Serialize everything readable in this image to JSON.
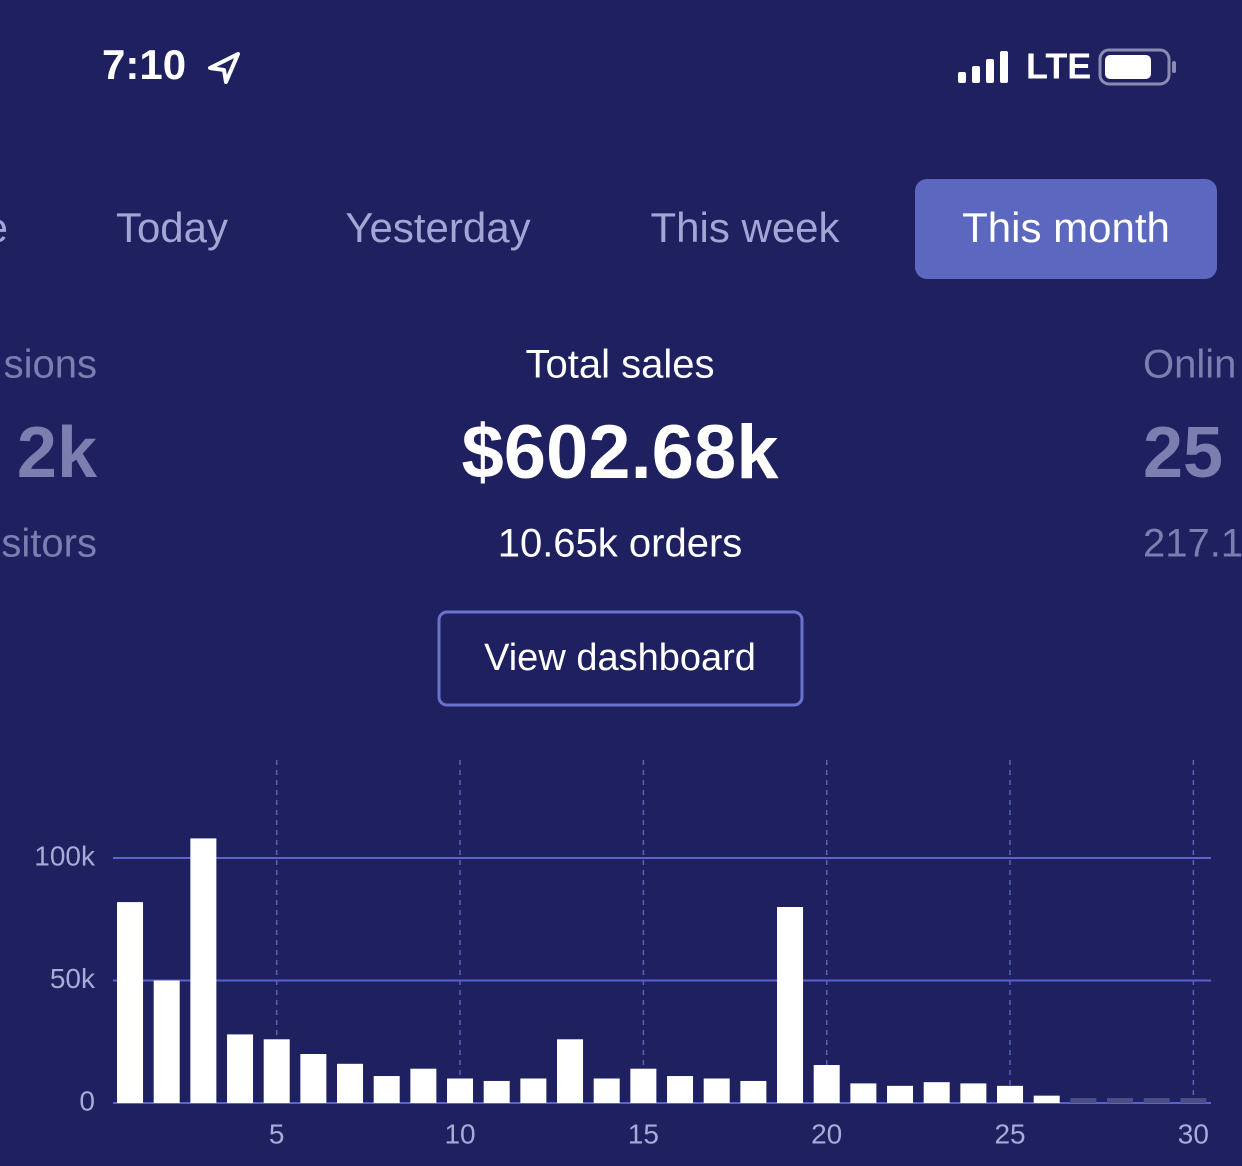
{
  "status_bar": {
    "time": "7:10",
    "network": "LTE"
  },
  "tabs": [
    {
      "label": "e",
      "active": false
    },
    {
      "label": "Today",
      "active": false
    },
    {
      "label": "Yesterday",
      "active": false
    },
    {
      "label": "This week",
      "active": false
    },
    {
      "label": "This month",
      "active": true
    }
  ],
  "metrics": [
    {
      "title": "sions",
      "value": "2k",
      "subtitle": "sitors"
    },
    {
      "title": "Total sales",
      "value": "$602.68k",
      "subtitle": "10.65k orders"
    },
    {
      "title": "Onlin",
      "value": "25",
      "subtitle": "217.1"
    }
  ],
  "button": "View dashboard",
  "chart_data": {
    "type": "bar",
    "x": [
      1,
      2,
      3,
      4,
      5,
      6,
      7,
      8,
      9,
      10,
      11,
      12,
      13,
      14,
      15,
      16,
      17,
      18,
      19,
      20,
      21,
      22,
      23,
      24,
      25,
      26,
      27,
      28,
      29,
      30
    ],
    "values": [
      82000,
      50000,
      108000,
      28000,
      26000,
      20000,
      16000,
      11000,
      14000,
      10000,
      9000,
      10000,
      26000,
      10000,
      14000,
      11000,
      10000,
      9000,
      80000,
      15500,
      8000,
      7000,
      8500,
      8000,
      7000,
      3000,
      0,
      0,
      0,
      0
    ],
    "color": "#ffffff",
    "xlim": [
      0.5,
      30.5
    ],
    "xticks": [
      5,
      10,
      15,
      20,
      25,
      30
    ],
    "ylim": [
      0,
      140000
    ],
    "yticks": [
      0,
      {
        "value": 50000,
        "label": "50k"
      },
      {
        "value": 100000,
        "label": "100k"
      }
    ],
    "grid": true
  }
}
